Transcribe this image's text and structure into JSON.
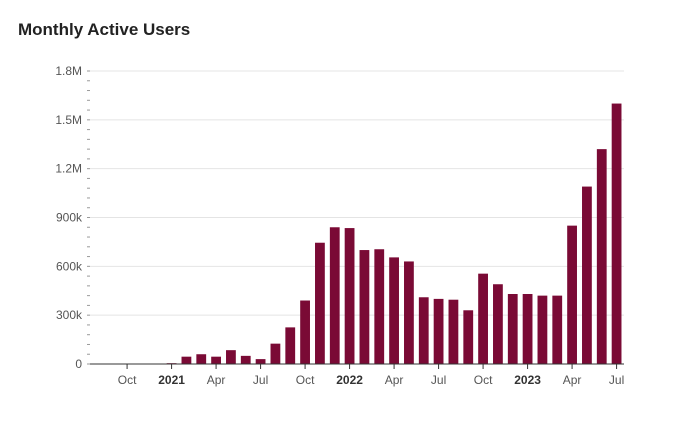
{
  "chart_data": {
    "type": "bar",
    "title": "Monthly Active Users",
    "xlabel": "",
    "ylabel": "",
    "ylim": [
      0,
      1800000
    ],
    "grid": true,
    "legend": "none",
    "bar_color": "#7a0a35",
    "y_ticks": [
      {
        "value": 0,
        "label": "0"
      },
      {
        "value": 300000,
        "label": "300k"
      },
      {
        "value": 600000,
        "label": "600k"
      },
      {
        "value": 900000,
        "label": "900k"
      },
      {
        "value": 1200000,
        "label": "1.2M"
      },
      {
        "value": 1500000,
        "label": "1.5M"
      },
      {
        "value": 1800000,
        "label": "1.8M"
      }
    ],
    "x_ticks": [
      {
        "month": "2020-10",
        "label": "Oct",
        "bold": false
      },
      {
        "month": "2021-01",
        "label": "2021",
        "bold": true
      },
      {
        "month": "2021-04",
        "label": "Apr",
        "bold": false
      },
      {
        "month": "2021-07",
        "label": "Jul",
        "bold": false
      },
      {
        "month": "2021-10",
        "label": "Oct",
        "bold": false
      },
      {
        "month": "2022-01",
        "label": "2022",
        "bold": true
      },
      {
        "month": "2022-04",
        "label": "Apr",
        "bold": false
      },
      {
        "month": "2022-07",
        "label": "Jul",
        "bold": false
      },
      {
        "month": "2022-10",
        "label": "Oct",
        "bold": false
      },
      {
        "month": "2023-01",
        "label": "2023",
        "bold": true
      },
      {
        "month": "2023-04",
        "label": "Apr",
        "bold": false
      },
      {
        "month": "2023-07",
        "label": "Jul",
        "bold": false
      }
    ],
    "x": [
      "2020-08",
      "2020-09",
      "2020-10",
      "2020-11",
      "2020-12",
      "2021-01",
      "2021-02",
      "2021-03",
      "2021-04",
      "2021-05",
      "2021-06",
      "2021-07",
      "2021-08",
      "2021-09",
      "2021-10",
      "2021-11",
      "2021-12",
      "2022-01",
      "2022-02",
      "2022-03",
      "2022-04",
      "2022-05",
      "2022-06",
      "2022-07",
      "2022-08",
      "2022-09",
      "2022-10",
      "2022-11",
      "2022-12",
      "2023-01",
      "2023-02",
      "2023-03",
      "2023-04",
      "2023-05",
      "2023-06",
      "2023-07"
    ],
    "values": [
      0,
      0,
      0,
      0,
      0,
      5000,
      45000,
      60000,
      45000,
      85000,
      50000,
      30000,
      125000,
      225000,
      390000,
      745000,
      840000,
      835000,
      700000,
      705000,
      655000,
      630000,
      410000,
      400000,
      395000,
      330000,
      555000,
      490000,
      430000,
      430000,
      420000,
      420000,
      850000,
      1090000,
      1320000,
      1600000
    ]
  }
}
